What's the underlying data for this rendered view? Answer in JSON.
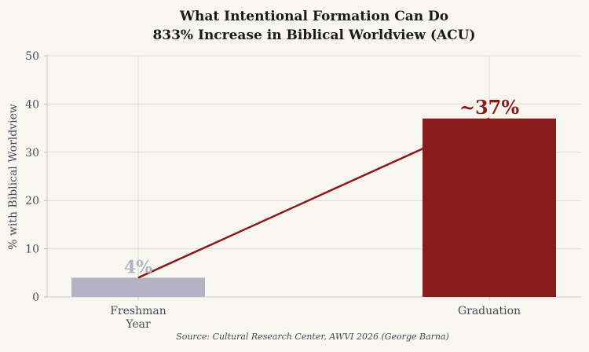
{
  "chart_data": {
    "type": "bar",
    "title_line1": "What Intentional Formation Can Do",
    "title_line2": "833% Increase in Biblical Worldview (ACU)",
    "ylabel": "% with Biblical Worldview",
    "xlabel": "",
    "ylim": [
      0,
      50
    ],
    "yticks": [
      "0",
      "10",
      "20",
      "30",
      "40",
      "50"
    ],
    "categories": [
      {
        "line1": "Freshman",
        "line2": "Year"
      },
      {
        "line1": "Graduation",
        "line2": ""
      }
    ],
    "values": [
      4,
      37
    ],
    "data_labels": [
      "4%",
      "~37%"
    ],
    "bar_colors": [
      "#b3b3c1",
      "#8b1a1a"
    ],
    "label_colors": [
      "#b3b3c1",
      "#8b1a1a"
    ],
    "trend_line_color": "#8b1a1a",
    "grid": true,
    "source": "Source: Cultural Research Center, AWVI 2026 (George Barna)"
  }
}
